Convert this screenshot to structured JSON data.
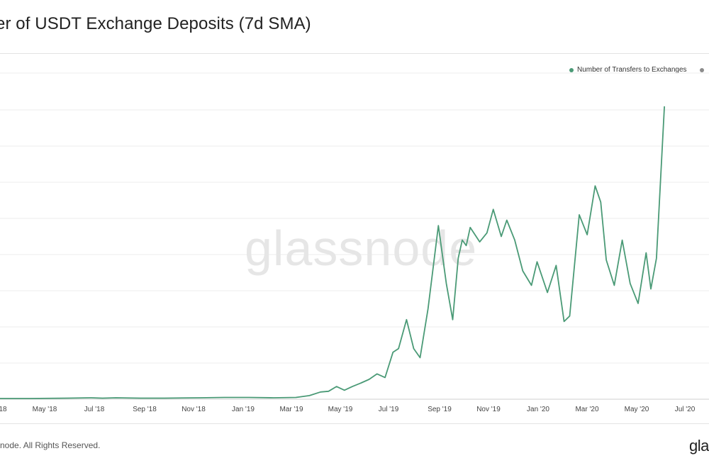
{
  "header": {
    "title": "er of USDT Exchange Deposits (7d SMA)"
  },
  "legend": {
    "items": [
      {
        "label": "Number of Transfers to Exchanges",
        "color": "#4a9a76"
      },
      {
        "label": "",
        "color": "#8c8c8c"
      }
    ]
  },
  "watermark": "glassnode",
  "footer": {
    "copyright": "snode. All Rights Reserved.",
    "brand": "gla"
  },
  "chart_data": {
    "type": "line",
    "title": "er of USDT Exchange Deposits (7d SMA)",
    "xlabel": "",
    "ylabel": "",
    "grid": true,
    "legend_position": "top-right",
    "x_ticks": [
      "18",
      "May '18",
      "Jul '18",
      "Sep '18",
      "Nov '18",
      "Jan '19",
      "Mar '19",
      "May '19",
      "Jul '19",
      "Sep '19",
      "Nov '19",
      "Jan '20",
      "Mar '20",
      "May '20",
      "Jul '20"
    ],
    "ylim": [
      0,
      8
    ],
    "series": [
      {
        "name": "Number of Transfers to Exchanges",
        "color": "#4a9a76",
        "points": [
          [
            "2018-03-01",
            0.02
          ],
          [
            "2018-04-15",
            0.02
          ],
          [
            "2018-06-01",
            0.03
          ],
          [
            "2018-07-01",
            0.04
          ],
          [
            "2018-07-15",
            0.03
          ],
          [
            "2018-08-01",
            0.04
          ],
          [
            "2018-09-01",
            0.03
          ],
          [
            "2018-10-01",
            0.03
          ],
          [
            "2018-11-15",
            0.04
          ],
          [
            "2018-12-15",
            0.05
          ],
          [
            "2019-01-15",
            0.05
          ],
          [
            "2019-02-15",
            0.04
          ],
          [
            "2019-03-15",
            0.05
          ],
          [
            "2019-04-01",
            0.1
          ],
          [
            "2019-04-15",
            0.2
          ],
          [
            "2019-04-25",
            0.22
          ],
          [
            "2019-05-05",
            0.35
          ],
          [
            "2019-05-15",
            0.25
          ],
          [
            "2019-05-25",
            0.35
          ],
          [
            "2019-06-05",
            0.45
          ],
          [
            "2019-06-15",
            0.55
          ],
          [
            "2019-06-25",
            0.7
          ],
          [
            "2019-07-05",
            0.6
          ],
          [
            "2019-07-15",
            1.3
          ],
          [
            "2019-07-22",
            1.4
          ],
          [
            "2019-08-01",
            2.2
          ],
          [
            "2019-08-10",
            1.4
          ],
          [
            "2019-08-18",
            1.15
          ],
          [
            "2019-08-28",
            2.5
          ],
          [
            "2019-09-10",
            4.8
          ],
          [
            "2019-09-20",
            3.2
          ],
          [
            "2019-09-28",
            2.2
          ],
          [
            "2019-10-05",
            3.9
          ],
          [
            "2019-10-10",
            4.4
          ],
          [
            "2019-10-15",
            4.25
          ],
          [
            "2019-10-20",
            4.75
          ],
          [
            "2019-11-01",
            4.35
          ],
          [
            "2019-11-10",
            4.6
          ],
          [
            "2019-11-18",
            5.25
          ],
          [
            "2019-11-28",
            4.5
          ],
          [
            "2019-12-05",
            4.95
          ],
          [
            "2019-12-15",
            4.4
          ],
          [
            "2019-12-25",
            3.55
          ],
          [
            "2020-01-05",
            3.15
          ],
          [
            "2020-01-12",
            3.8
          ],
          [
            "2020-01-25",
            2.95
          ],
          [
            "2020-02-05",
            3.7
          ],
          [
            "2020-02-15",
            2.15
          ],
          [
            "2020-02-22",
            2.3
          ],
          [
            "2020-03-05",
            5.1
          ],
          [
            "2020-03-15",
            4.55
          ],
          [
            "2020-03-25",
            5.9
          ],
          [
            "2020-04-01",
            5.45
          ],
          [
            "2020-04-08",
            3.85
          ],
          [
            "2020-04-18",
            3.15
          ],
          [
            "2020-04-28",
            4.4
          ],
          [
            "2020-05-08",
            3.2
          ],
          [
            "2020-05-18",
            2.65
          ],
          [
            "2020-05-28",
            4.05
          ],
          [
            "2020-06-03",
            3.05
          ],
          [
            "2020-06-10",
            3.9
          ],
          [
            "2020-06-20",
            8.1
          ]
        ]
      }
    ]
  }
}
